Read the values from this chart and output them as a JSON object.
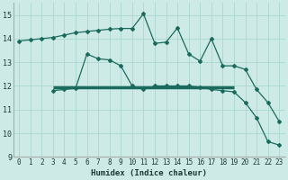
{
  "xlabel": "Humidex (Indice chaleur)",
  "ylabel": "",
  "bg_color": "#ceeae6",
  "line_color": "#1a6b5e",
  "grid_color": "#a8d8d0",
  "xlim": [
    -0.5,
    23.5
  ],
  "ylim": [
    9,
    15.5
  ],
  "yticks": [
    9,
    10,
    11,
    12,
    13,
    14,
    15
  ],
  "xticks": [
    0,
    1,
    2,
    3,
    4,
    5,
    6,
    7,
    8,
    9,
    10,
    11,
    12,
    13,
    14,
    15,
    16,
    17,
    18,
    19,
    20,
    21,
    22,
    23
  ],
  "line1_x": [
    0,
    1,
    2,
    3,
    4,
    5,
    6,
    7,
    8,
    9,
    10,
    11,
    12,
    13,
    14,
    15,
    16,
    17,
    18,
    19,
    20,
    21,
    22,
    23
  ],
  "line1_y": [
    13.9,
    13.95,
    14.0,
    14.05,
    14.15,
    14.25,
    14.3,
    14.35,
    14.4,
    14.43,
    14.43,
    15.05,
    13.8,
    13.85,
    14.45,
    13.35,
    13.05,
    14.0,
    12.85,
    12.85,
    12.7,
    11.85,
    11.3,
    10.5
  ],
  "line2_x": [
    3,
    4,
    5,
    6,
    7,
    8,
    9,
    10,
    11,
    12,
    13,
    14,
    15,
    16,
    17,
    18,
    19,
    20,
    21,
    22,
    23
  ],
  "line2_y": [
    11.8,
    11.85,
    11.9,
    13.35,
    13.15,
    13.1,
    12.85,
    12.0,
    11.85,
    12.0,
    12.0,
    12.0,
    12.0,
    11.95,
    11.85,
    11.8,
    11.75,
    11.3,
    10.65,
    9.65,
    9.5
  ],
  "hline_y": 11.95,
  "hline_xstart": 3.0,
  "hline_xend": 19.0
}
